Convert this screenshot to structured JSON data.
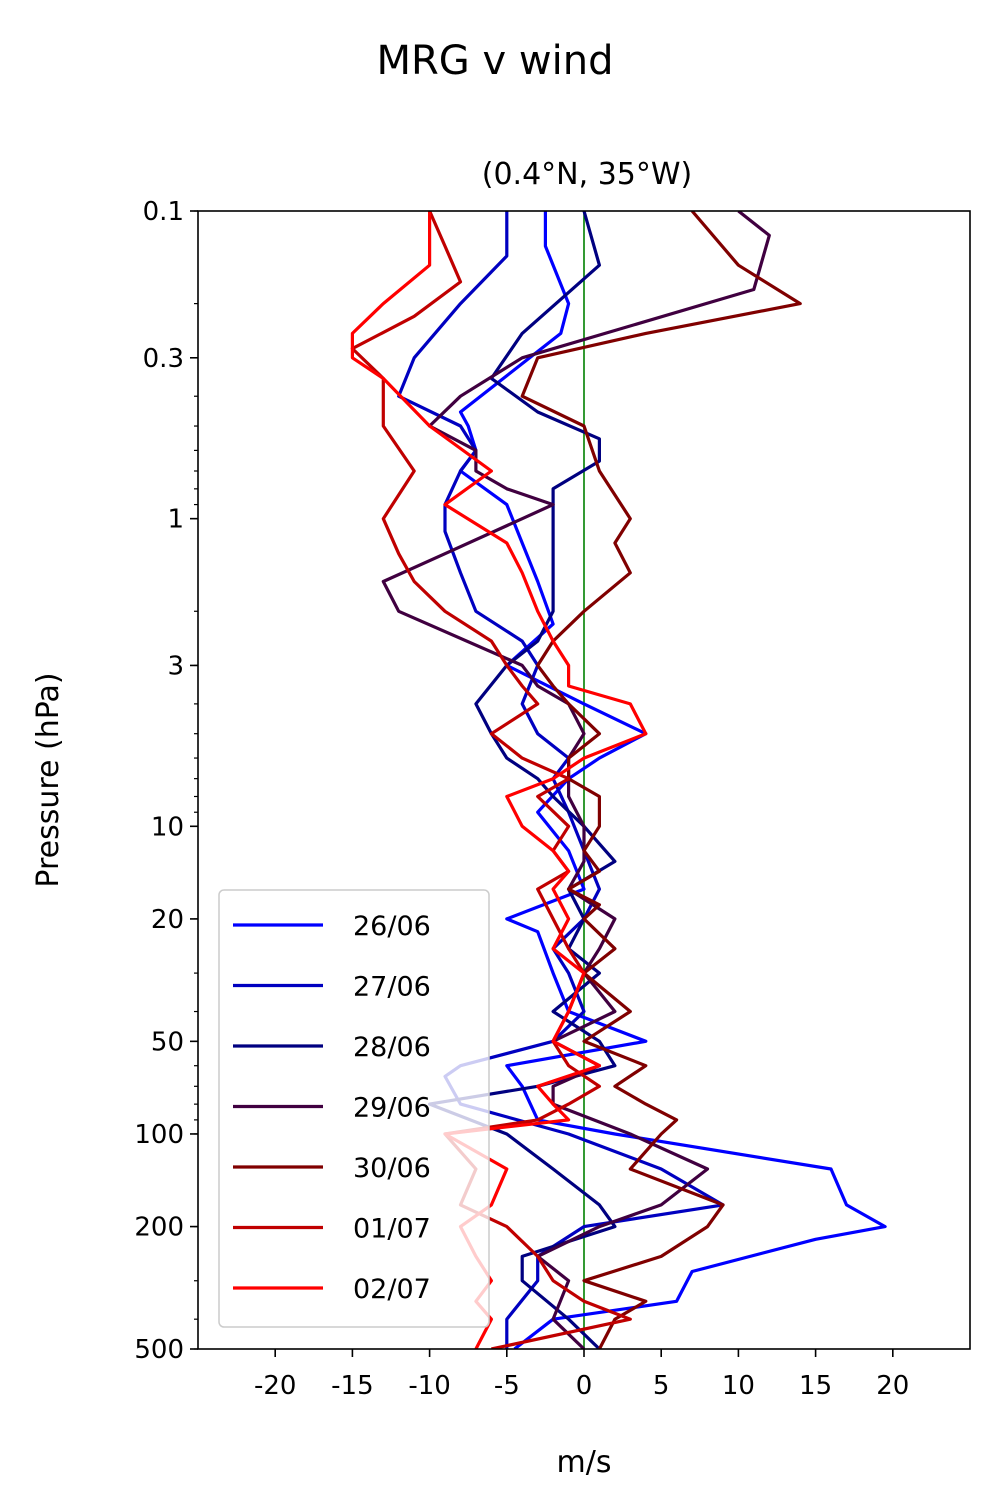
{
  "chart_data": {
    "type": "line",
    "title": "MRG v wind",
    "subtitle": "(0.4°N, 35°W)",
    "xlabel": "m/s",
    "ylabel": "Pressure (hPa)",
    "xlim": [
      -25,
      25
    ],
    "ylim": [
      500,
      0.1
    ],
    "yscale": "log",
    "x_ticks": [
      -20,
      -15,
      -10,
      -5,
      0,
      5,
      10,
      15,
      20
    ],
    "x_tick_labels": [
      "-20",
      "-15",
      "-10",
      "-5",
      "0",
      "5",
      "10",
      "15",
      "20"
    ],
    "y_ticks": [
      0.1,
      0.3,
      1,
      3,
      10,
      20,
      50,
      100,
      200,
      500
    ],
    "y_tick_labels": [
      "0.1",
      "0.3",
      "1",
      "3",
      "10",
      "20",
      "50",
      "100",
      "200",
      "500"
    ],
    "zero_line_color": "#008000",
    "legend_position": "lower-left",
    "series": [
      {
        "name": "26/06",
        "color": "#0000ff",
        "pressure": [
          0.1,
          0.13,
          0.2,
          0.25,
          0.45,
          0.5,
          0.6,
          0.7,
          0.9,
          1.2,
          1.6,
          2.2,
          3,
          4,
          5,
          6,
          7,
          9,
          12,
          16,
          20,
          22,
          30,
          40,
          50,
          60,
          70,
          90,
          100,
          130,
          170,
          200,
          220,
          280,
          350,
          400,
          500
        ],
        "v": [
          -2.5,
          -2.5,
          -1,
          -1.5,
          -8,
          -7.5,
          -7,
          -8,
          -5,
          -4,
          -3,
          -2,
          -5,
          0,
          4,
          1,
          -1,
          -3,
          -1,
          0,
          -5,
          -3,
          -2,
          -1,
          4,
          -5,
          -4,
          -3,
          2,
          16,
          17,
          19.5,
          15,
          7,
          6,
          -2,
          -4.5
        ]
      },
      {
        "name": "27/06",
        "color": "#0000c0",
        "pressure": [
          0.1,
          0.14,
          0.2,
          0.3,
          0.4,
          0.5,
          0.6,
          0.7,
          0.9,
          1.1,
          1.5,
          2,
          2.5,
          3,
          4,
          5,
          6,
          7,
          9,
          12,
          16,
          20,
          25,
          30,
          40,
          50,
          60,
          65,
          80,
          100,
          130,
          170,
          200,
          250,
          300,
          400,
          500
        ],
        "v": [
          -5,
          -5,
          -8,
          -11,
          -12,
          -8,
          -7,
          -8,
          -9,
          -9,
          -8,
          -7,
          -4,
          -3,
          -4,
          -3,
          -1,
          -2,
          -1,
          0,
          1,
          0,
          -2,
          -1,
          0,
          -2,
          -8,
          -9,
          -8,
          -1,
          5,
          9,
          0,
          -3,
          -3,
          -5,
          -5
        ]
      },
      {
        "name": "28/06",
        "color": "#000080",
        "pressure": [
          0.1,
          0.15,
          0.25,
          0.35,
          0.45,
          0.55,
          0.65,
          0.8,
          1,
          1.2,
          1.5,
          2,
          2.5,
          3,
          4,
          5,
          6,
          7,
          8,
          10,
          13,
          16,
          20,
          25,
          30,
          40,
          50,
          60,
          70,
          80,
          100,
          130,
          170,
          200,
          250,
          300,
          400,
          500
        ],
        "v": [
          0,
          1,
          -4,
          -6,
          -3,
          1,
          1,
          -2,
          -2,
          -2,
          -2,
          -2,
          -3,
          -5,
          -7,
          -6,
          -5,
          -3,
          -2,
          0,
          2,
          -1,
          0,
          -1,
          1,
          -2,
          1,
          2,
          -3,
          -10,
          -5,
          -2,
          1,
          2,
          -4,
          -4,
          -1,
          1
        ]
      },
      {
        "name": "29/06",
        "color": "#400040",
        "pressure": [
          0.1,
          0.12,
          0.18,
          0.3,
          0.4,
          0.5,
          0.6,
          0.7,
          0.8,
          0.9,
          1,
          1.3,
          1.6,
          2,
          3,
          3.5,
          4,
          5,
          6,
          8,
          10,
          13,
          16,
          20,
          25,
          30,
          40,
          50,
          60,
          70,
          80,
          100,
          130,
          170,
          200,
          250,
          300,
          400,
          500
        ],
        "v": [
          10,
          12,
          11,
          -4,
          -8,
          -10,
          -7,
          -7,
          -5,
          -2,
          -4,
          -9,
          -13,
          -12,
          -4,
          -3,
          -1,
          0,
          -1,
          -1,
          0,
          0,
          -1,
          2,
          1,
          0,
          2,
          -2,
          1,
          -2,
          -2,
          3,
          8,
          5,
          1,
          -3,
          -1,
          -2,
          0
        ]
      },
      {
        "name": "30/06",
        "color": "#800000",
        "pressure": [
          0.1,
          0.15,
          0.2,
          0.25,
          0.3,
          0.4,
          0.5,
          0.7,
          1,
          1.2,
          1.5,
          2,
          2.5,
          3,
          3.5,
          4,
          5,
          6,
          7,
          8,
          10,
          12,
          14,
          16,
          18,
          20,
          25,
          30,
          40,
          50,
          60,
          70,
          80,
          90,
          100,
          130,
          170,
          200,
          250,
          300,
          350,
          400,
          500
        ],
        "v": [
          7,
          10,
          14,
          4,
          -3,
          -4,
          0,
          1,
          3,
          2,
          3,
          0,
          -2,
          -3,
          -2,
          -1,
          1,
          -1,
          -1,
          1,
          1,
          0,
          1,
          -1,
          1,
          0,
          2,
          0,
          3,
          0,
          4,
          2,
          4,
          6,
          5,
          3,
          9,
          8,
          5,
          0,
          4,
          2,
          1
        ]
      },
      {
        "name": "01/07",
        "color": "#c00000",
        "pressure": [
          0.1,
          0.13,
          0.17,
          0.22,
          0.28,
          0.35,
          0.5,
          0.7,
          1,
          1.3,
          1.6,
          2,
          2.5,
          3,
          3.5,
          4,
          5,
          6,
          7,
          8,
          10,
          12,
          14,
          16,
          20,
          25,
          30,
          40,
          50,
          60,
          70,
          80,
          90,
          100,
          130,
          170,
          200,
          250,
          300,
          350,
          400,
          500
        ],
        "v": [
          -10,
          -9,
          -8,
          -11,
          -15,
          -13,
          -13,
          -11,
          -13,
          -12,
          -11,
          -9,
          -6,
          -5,
          -4,
          -3,
          -6,
          -4,
          -1,
          -3,
          -1,
          -2,
          -1,
          -3,
          -2,
          -1,
          0,
          -1,
          -2,
          -1,
          1,
          -1,
          -3,
          -9,
          -7,
          -8,
          -5,
          -3,
          -2,
          0,
          3,
          -6
        ]
      },
      {
        "name": "02/07",
        "color": "#ff0000",
        "pressure": [
          0.1,
          0.15,
          0.2,
          0.25,
          0.3,
          0.35,
          0.5,
          0.7,
          0.9,
          1.2,
          1.5,
          2,
          2.5,
          3,
          3.5,
          4,
          5,
          6,
          7,
          8,
          10,
          12,
          14,
          16,
          20,
          25,
          30,
          40,
          50,
          60,
          70,
          80,
          90,
          100,
          130,
          170,
          200,
          250,
          300,
          350,
          400,
          500
        ],
        "v": [
          -10,
          -10,
          -13,
          -15,
          -15,
          -13,
          -10,
          -6,
          -9,
          -5,
          -4,
          -3,
          -2,
          -1,
          -1,
          3,
          4,
          0,
          -2,
          -5,
          -4,
          -2,
          -1,
          -2,
          -1,
          -2,
          0,
          -1,
          -2,
          1,
          -3,
          -2,
          -1,
          -9,
          -5,
          -6,
          -8,
          -7,
          -6,
          -7,
          -6,
          -7
        ]
      }
    ]
  }
}
